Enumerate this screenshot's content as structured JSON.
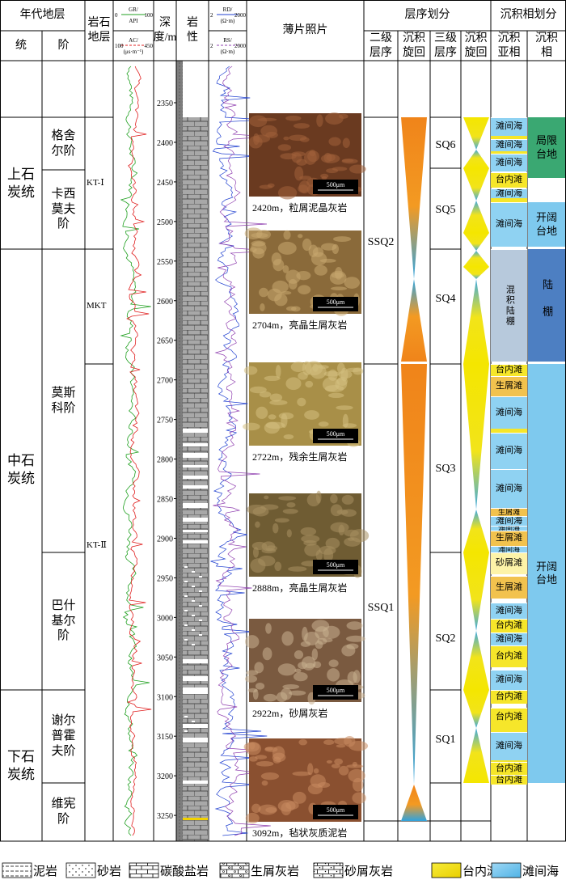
{
  "header": {
    "chronostratigraphy": "年代地层",
    "series": "统",
    "stage": "阶",
    "lithostratigraphy": "岩石地层",
    "depth": "深度/m",
    "lithology": "岩性",
    "photos": "薄片照片",
    "sequence": "层序划分",
    "ssq": "二级层序",
    "ssq_cycle": "沉积旋回",
    "sq": "三级层序",
    "sq_cycle": "沉积旋回",
    "facies": "沉积相划分",
    "subfacies": "沉积亚相",
    "facies_col": "沉积相"
  },
  "logs": [
    {
      "name": "GR/",
      "unit": "API",
      "min": 0,
      "max": 100
    },
    {
      "name": "AC/",
      "unit": "(μs·m⁻¹)",
      "min": 100,
      "max": 450
    },
    {
      "name": "RD/",
      "unit": "(Ω·m)",
      "min": 2,
      "max": 2000
    },
    {
      "name": "RS/",
      "unit": "(Ω·m)",
      "min": 2,
      "max": 2000
    }
  ],
  "depth_ticks": [
    2350,
    2400,
    2450,
    2500,
    2550,
    2600,
    2650,
    2700,
    2750,
    2800,
    2850,
    2900,
    2950,
    3000,
    3050,
    3100,
    3150,
    3200,
    3250
  ],
  "series": [
    "上石炭统",
    "中石炭统",
    "下石炭统"
  ],
  "stages": [
    "格舍尔阶",
    "卡西莫夫阶",
    "莫斯科阶",
    "巴什基尔阶",
    "谢尔普霍夫阶",
    "维宪阶"
  ],
  "formations": [
    "KT-Ⅰ",
    "MKT",
    "KT-Ⅱ"
  ],
  "photos": {
    "scale_bar": "500μm",
    "captions": [
      "2420m，粒屑泥晶灰岩",
      "2704m，亮晶生屑灰岩",
      "2722m，残余生屑灰岩",
      "2888m，亮晶生屑灰岩",
      "2922m，砂屑灰岩",
      "3092m，毡状灰质泥岩"
    ]
  },
  "second_order": [
    "SSQ2",
    "SSQ1"
  ],
  "third_order": [
    "SQ6",
    "SQ5",
    "SQ4",
    "SQ3",
    "SQ2",
    "SQ1"
  ],
  "subfacies": [
    "滩间海",
    "滩间海",
    "滩间海",
    "台内滩",
    "滩间海",
    "滩间海",
    "混积陆棚",
    "台内滩",
    "生屑滩",
    "滩间海",
    "滩间海",
    "滩间海",
    "生屑滩",
    "滩间海",
    "滩间海",
    "生屑滩",
    "滩间海",
    "砂屑滩",
    "生屑滩",
    "滩间海",
    "台内滩",
    "滩间海",
    "台内滩",
    "滩间海",
    "台内滩",
    "台内滩",
    "滩间海",
    "台内滩",
    "台内滩"
  ],
  "facies": [
    "局限台地",
    "开阔台地",
    "陆棚",
    "开阔台地"
  ],
  "legend": [
    "泥岩",
    "砂岩",
    "碳酸盐岩",
    "生屑灰岩",
    "砂屑灰岩",
    "台内滩",
    "滩间海"
  ]
}
